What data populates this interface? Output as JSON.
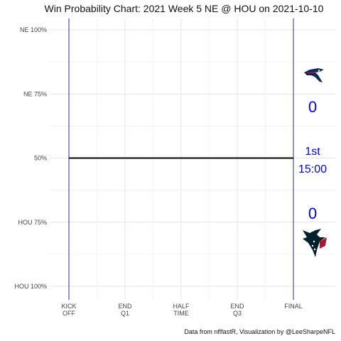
{
  "chart_data": {
    "type": "line",
    "title": "Win Probability Chart: 2021 Week 5 NE @ HOU on 2021-10-10",
    "caption": "Data from nflfastR, Visualization by @LeeSharpeNFL",
    "x_ticks": [
      {
        "x": 0,
        "lines": [
          "KICK",
          "OFF"
        ]
      },
      {
        "x": 15,
        "lines": [
          "END",
          "Q1"
        ]
      },
      {
        "x": 30,
        "lines": [
          "HALF",
          "TIME"
        ]
      },
      {
        "x": 45,
        "lines": [
          "END",
          "Q3"
        ]
      },
      {
        "x": 60,
        "lines": [
          "FINAL"
        ]
      }
    ],
    "y_ticks": [
      {
        "y": 1.0,
        "label": "NE 100%"
      },
      {
        "y": 0.75,
        "label": "NE 75%"
      },
      {
        "y": 0.5,
        "label": "50%"
      },
      {
        "y": 0.25,
        "label": "HOU 75%"
      },
      {
        "y": 0.0,
        "label": "HOU 100%"
      }
    ],
    "xlim": [
      0,
      60
    ],
    "ylim": [
      0,
      1
    ],
    "grid": true,
    "vlines": [
      0,
      60
    ],
    "series": [
      {
        "x": [
          0,
          60
        ],
        "y": [
          0.5,
          0.5
        ],
        "color": "#000000"
      }
    ],
    "annotations": {
      "away_score": "0",
      "home_score": "0",
      "quarter": "1st",
      "clock": "15:00",
      "color": "#0000ff"
    },
    "logos": {
      "away": "patriots-logo",
      "home": "texans-logo"
    }
  }
}
